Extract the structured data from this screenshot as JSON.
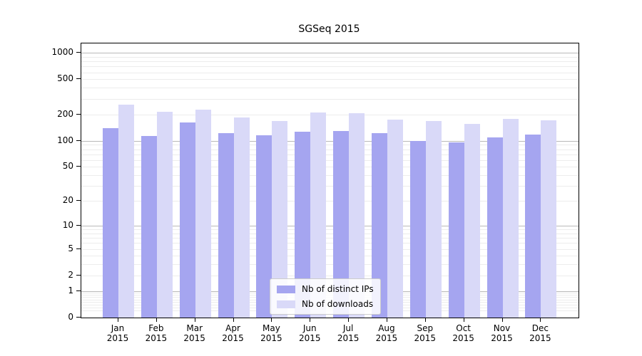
{
  "chart_data": {
    "type": "bar",
    "title": "SGSeq 2015",
    "categories": [
      {
        "month": "Jan",
        "year": "2015"
      },
      {
        "month": "Feb",
        "year": "2015"
      },
      {
        "month": "Mar",
        "year": "2015"
      },
      {
        "month": "Apr",
        "year": "2015"
      },
      {
        "month": "May",
        "year": "2015"
      },
      {
        "month": "Jun",
        "year": "2015"
      },
      {
        "month": "Jul",
        "year": "2015"
      },
      {
        "month": "Aug",
        "year": "2015"
      },
      {
        "month": "Sep",
        "year": "2015"
      },
      {
        "month": "Oct",
        "year": "2015"
      },
      {
        "month": "Nov",
        "year": "2015"
      },
      {
        "month": "Dec",
        "year": "2015"
      }
    ],
    "series": [
      {
        "name": "Nb of distinct IPs",
        "color": "#a5a5f0",
        "values": [
          140,
          113,
          162,
          122,
          115,
          128,
          130,
          122,
          99,
          96,
          110,
          118
        ]
      },
      {
        "name": "Nb of downloads",
        "color": "#d9d9f8",
        "values": [
          260,
          215,
          228,
          183,
          167,
          211,
          205,
          175,
          168,
          157,
          178,
          170
        ]
      }
    ],
    "y_axis": {
      "scale": "log1p",
      "ticks": [
        0,
        1,
        2,
        5,
        10,
        20,
        50,
        100,
        200,
        500,
        1000
      ],
      "range": [
        0,
        1280
      ],
      "major_gridlines": [
        1,
        10,
        100,
        1000
      ],
      "major_gridline_color": "#b9b9b9",
      "minor_gridline_color": "#ececec"
    },
    "legend": {
      "position": "lower-center"
    }
  }
}
